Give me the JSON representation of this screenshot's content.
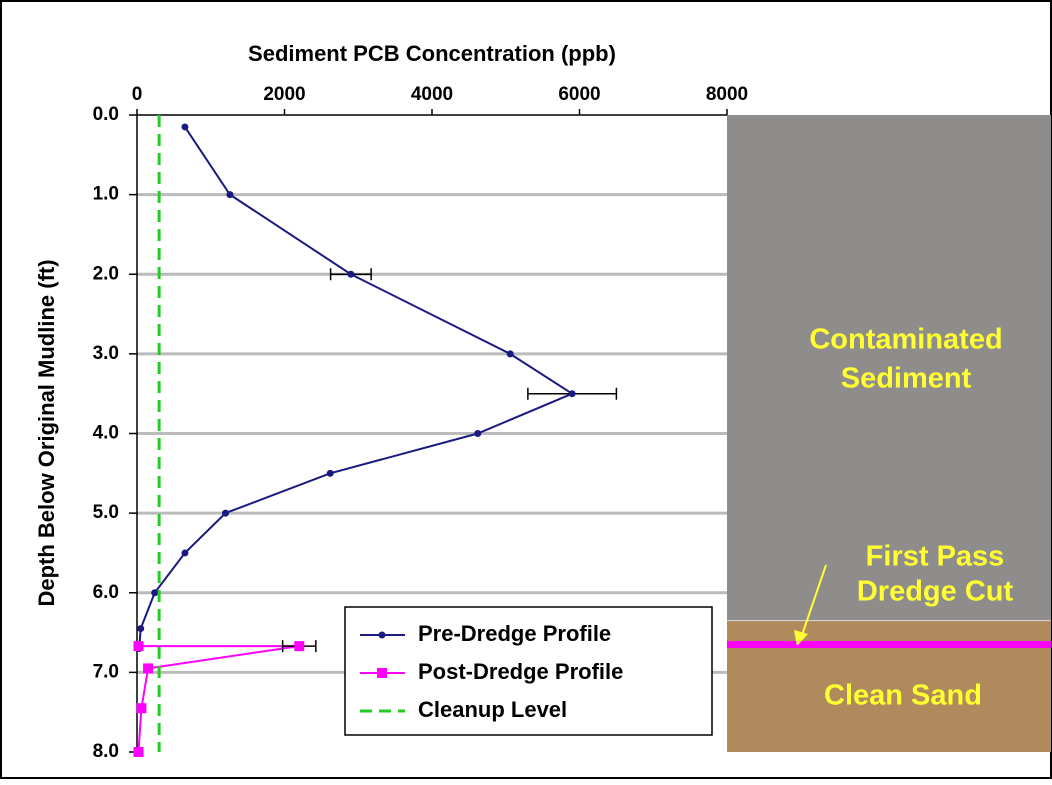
{
  "chart_data": {
    "type": "line",
    "title": "Sediment PCB Concentration  (ppb)",
    "y_label": "Depth Below Original Mudline (ft)",
    "xlim": [
      0,
      8000
    ],
    "xticks": [
      0,
      2000,
      4000,
      6000,
      8000
    ],
    "ylim": [
      0,
      8
    ],
    "y_reversed": true,
    "yticks": [
      {
        "value": 0,
        "label": "0.0"
      },
      {
        "value": 1,
        "label": "1.0"
      },
      {
        "value": 2,
        "label": "2.0"
      },
      {
        "value": 3,
        "label": "3.0"
      },
      {
        "value": 4,
        "label": "4.0"
      },
      {
        "value": 5,
        "label": "5.0"
      },
      {
        "value": 6,
        "label": "6.0"
      },
      {
        "value": 7,
        "label": "7.0"
      },
      {
        "value": 8,
        "label": "8.0"
      }
    ],
    "grid": true,
    "series": [
      {
        "name": "Pre-Dredge Profile",
        "color": "#1a1a80",
        "marker": "circle",
        "dash": false,
        "x": [
          650,
          1260,
          2900,
          5060,
          5900,
          4620,
          2620,
          1200,
          650,
          240,
          50,
          30
        ],
        "y": [
          0.15,
          1.0,
          2.0,
          3.0,
          3.5,
          4.0,
          4.5,
          5.0,
          5.5,
          6.0,
          6.45,
          6.7
        ],
        "x_err": [
          null,
          null,
          275,
          null,
          600,
          null,
          null,
          null,
          null,
          null,
          null,
          null
        ]
      },
      {
        "name": "Post-Dredge Profile",
        "color": "#ff00ff",
        "marker": "square",
        "dash": false,
        "x": [
          20,
          2200,
          150,
          60,
          20
        ],
        "y": [
          6.67,
          6.67,
          6.95,
          7.45,
          8.0
        ],
        "x_err": [
          null,
          225,
          null,
          null,
          null
        ]
      },
      {
        "name": "Cleanup Level",
        "color": "#22cc22",
        "marker": null,
        "dash": true,
        "x": [
          300,
          300
        ],
        "y": [
          0,
          8
        ],
        "x_err": [
          null,
          null
        ]
      }
    ],
    "legend": "bottom-right",
    "panel": {
      "sediment_label": [
        "Contaminated",
        "Sediment"
      ],
      "cut_label": [
        "First Pass",
        "Dredge Cut"
      ],
      "sand_label": "Clean Sand",
      "sand_top": 6.35,
      "cut_depth": 6.65,
      "sediment_color": "#8f8c8c",
      "sand_color": "#b08a5c",
      "cut_color": "#ff00ff",
      "text_color": "#ffff33"
    }
  }
}
